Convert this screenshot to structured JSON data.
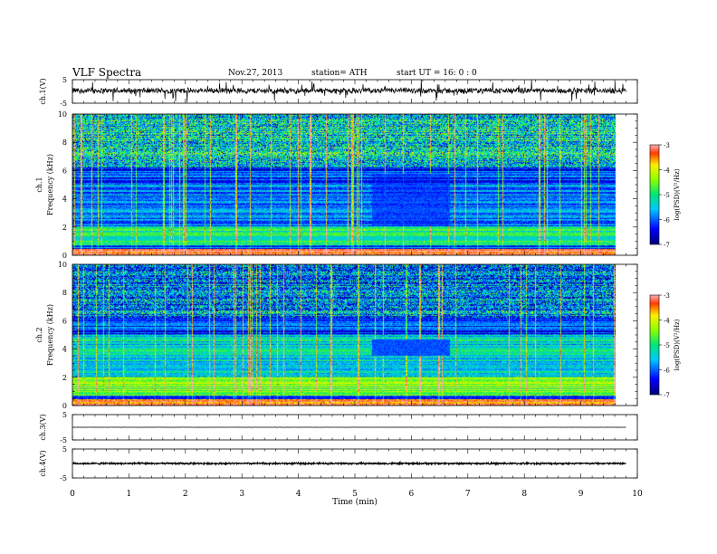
{
  "header": {
    "title": "VLF  Spectra",
    "date": "Nov.27, 2013",
    "station": "station= ATH",
    "start": "start  UT =   16: 0  : 0"
  },
  "chart_data": [
    {
      "type": "line",
      "panel": "ch1",
      "ylabel": "ch.1(V)",
      "ylim": [
        -5,
        5
      ],
      "yticks": [
        "5",
        "-5"
      ],
      "description_values": {
        "baseline": 0.3,
        "noise_amplitude": 1.5
      },
      "xlim": [
        0,
        10
      ]
    },
    {
      "type": "heatmap",
      "panel": "ch1-spectrogram",
      "ylabel_top": "ch.1",
      "ylabel": "Frequency  (kHz)",
      "ylim": [
        0,
        10
      ],
      "yticks": [
        "0",
        "2",
        "4",
        "6",
        "8",
        "10"
      ],
      "xlim": [
        0,
        10
      ],
      "data_end_min": 9.8,
      "colorbar": {
        "label": "log(PSD)(V²/Hz)",
        "range": [
          -7,
          -3
        ],
        "ticks": [
          "-3",
          "-4",
          "-5",
          "-6",
          "-7"
        ]
      },
      "quiet_band": {
        "t_start": 5.4,
        "t_end": 6.8,
        "f_low": 2.0,
        "f_high": 5.8
      }
    },
    {
      "type": "heatmap",
      "panel": "ch2-spectrogram",
      "ylabel_top": "ch.2",
      "ylabel": "Frequency  (kHz)",
      "ylim": [
        0,
        10
      ],
      "yticks": [
        "0",
        "2",
        "4",
        "6",
        "8",
        "10"
      ],
      "xlim": [
        0,
        10
      ],
      "data_end_min": 9.8,
      "colorbar": {
        "label": "log(PSD)(V²/Hz)",
        "range": [
          -7,
          -3
        ],
        "ticks": [
          "-3",
          "-4",
          "-5",
          "-6",
          "-7"
        ]
      },
      "quiet_band": {
        "t_start": 5.4,
        "t_end": 6.8,
        "f_low": 3.5,
        "f_high": 4.7
      }
    },
    {
      "type": "line",
      "panel": "ch3",
      "ylabel": "ch.3(V)",
      "ylim": [
        -5,
        5
      ],
      "yticks": [
        "5",
        "-5"
      ],
      "description_values": {
        "baseline": 0.0,
        "noise_amplitude": 0.05
      },
      "xlim": [
        0,
        10
      ]
    },
    {
      "type": "line",
      "panel": "ch4",
      "ylabel": "ch.4(V)",
      "ylim": [
        -5,
        5
      ],
      "yticks": [
        "5",
        "-5"
      ],
      "description_values": {
        "baseline": 0.0,
        "noise_amplitude": 0.35
      },
      "xlim": [
        0,
        10
      ]
    }
  ],
  "x_axis": {
    "label": "Time  (min)",
    "ticks": [
      "0",
      "1",
      "2",
      "3",
      "4",
      "5",
      "6",
      "7",
      "8",
      "9",
      "10"
    ]
  }
}
